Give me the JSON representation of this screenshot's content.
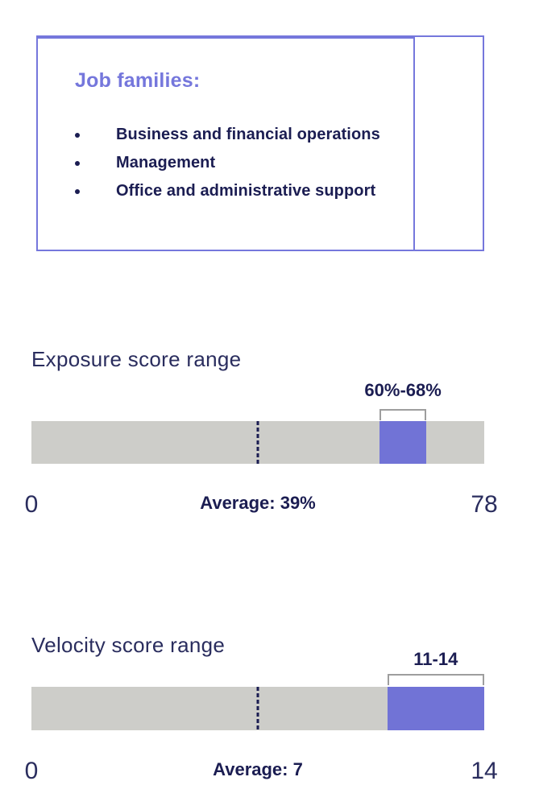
{
  "colors": {
    "accent_purple": "#7577DC",
    "range_bar_purple": "#7173D6",
    "text_navy": "#1B1D52",
    "track_gray": "#CDCDC9",
    "bracket_gray": "#9E9E9E"
  },
  "job_box": {
    "title": "Job families:",
    "items": [
      "Business and financial operations",
      "Management",
      "Office and administrative support"
    ]
  },
  "chart_data": [
    {
      "type": "bar",
      "variant": "linear-gauge",
      "title": "Exposure score range",
      "axis_min": 0,
      "axis_max": 78,
      "axis_min_label": "0",
      "axis_max_label": "78",
      "range_min": 60,
      "range_max": 68,
      "range_label": "60%-68%",
      "average": 39,
      "average_label": "Average: 39%"
    },
    {
      "type": "bar",
      "variant": "linear-gauge",
      "title": "Velocity score range",
      "axis_min": 0,
      "axis_max": 14,
      "axis_min_label": "0",
      "axis_max_label": "14",
      "range_min": 11,
      "range_max": 14,
      "range_label": "11-14",
      "average": 7,
      "average_label": "Average: 7"
    }
  ]
}
